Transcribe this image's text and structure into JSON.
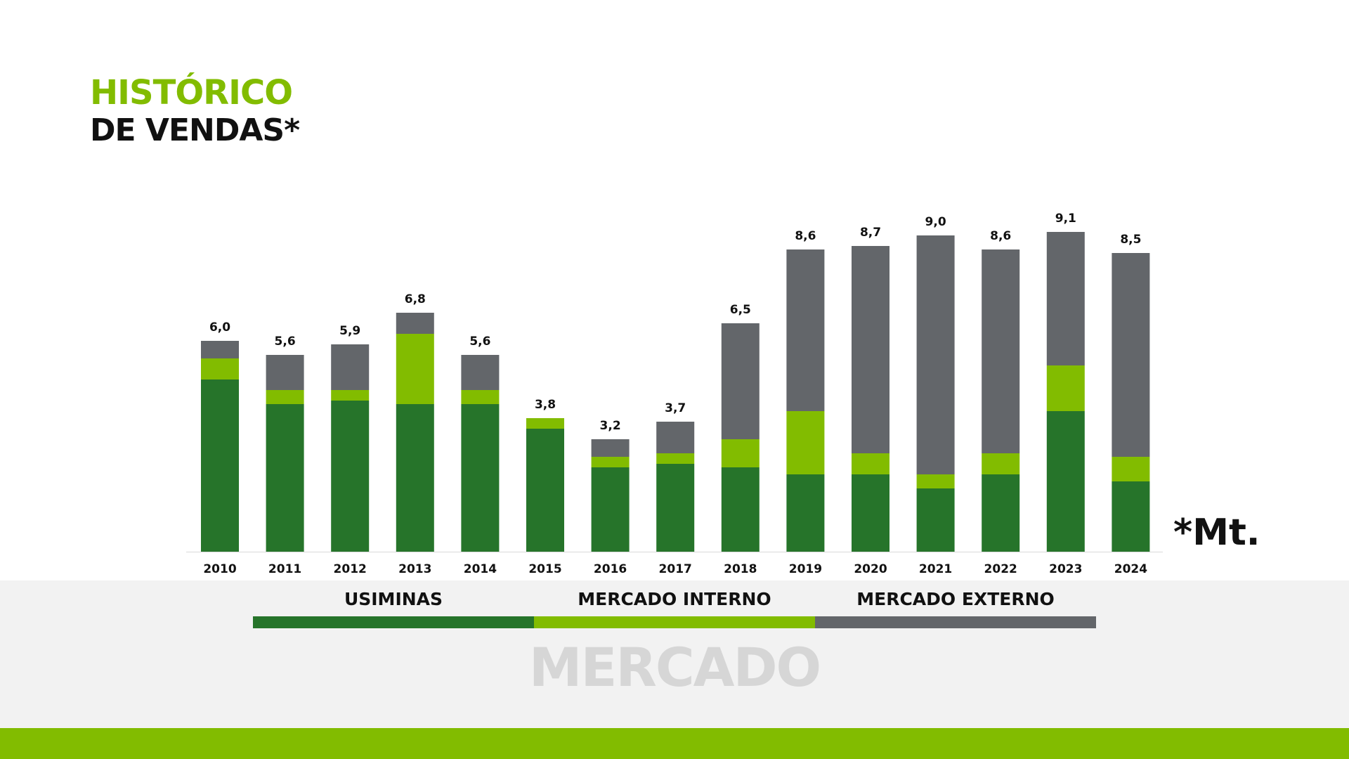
{
  "title": {
    "line1": "HISTÓRICO",
    "line2": "DE VENDAS*"
  },
  "unit_note": "*Mt.",
  "colors": {
    "usiminas": "#26742a",
    "mercado_interno": "#82bc00",
    "mercado_externo": "#63666a",
    "accent": "#82bc00"
  },
  "legend": {
    "usiminas": "USIMINAS",
    "mercado_interno": "MERCADO INTERNO",
    "mercado_externo": "MERCADO EXTERNO"
  },
  "footer_label": "MERCADO",
  "chart_data": {
    "type": "bar",
    "stacked": true,
    "categories": [
      "2010",
      "2011",
      "2012",
      "2013",
      "2014",
      "2015",
      "2016",
      "2017",
      "2018",
      "2019",
      "2020",
      "2021",
      "2022",
      "2023",
      "2024"
    ],
    "series": [
      {
        "name": "USIMINAS",
        "values": [
          4.9,
          4.2,
          4.3,
          4.2,
          4.2,
          3.5,
          2.4,
          2.5,
          2.4,
          2.2,
          2.2,
          1.8,
          2.2,
          4.0,
          2.0
        ]
      },
      {
        "name": "MERCADO INTERNO",
        "values": [
          0.6,
          0.4,
          0.3,
          2.0,
          0.4,
          0.3,
          0.3,
          0.3,
          0.8,
          1.8,
          0.6,
          0.4,
          0.6,
          1.3,
          0.7
        ]
      },
      {
        "name": "MERCADO EXTERNO",
        "values": [
          0.5,
          1.0,
          1.3,
          0.6,
          1.0,
          0.0,
          0.5,
          0.9,
          3.3,
          4.6,
          5.9,
          6.8,
          5.8,
          3.8,
          5.8
        ]
      }
    ],
    "totals": [
      "6,0",
      "5,6",
      "5,9",
      "6,8",
      "5,6",
      "3,8",
      "3,2",
      "3,7",
      "6,5",
      "8,6",
      "8,7",
      "9,0",
      "8,6",
      "9,1",
      "8,5"
    ],
    "ylim": [
      0,
      10
    ],
    "grid": false,
    "legend_position": "bottom"
  }
}
